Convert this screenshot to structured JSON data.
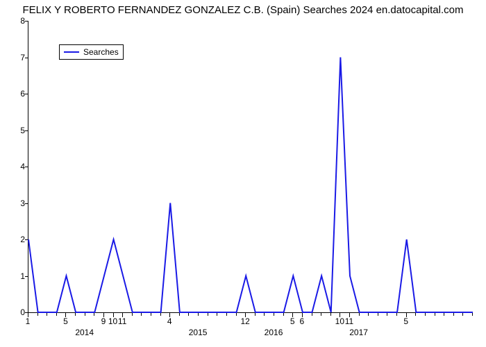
{
  "chart": {
    "type": "line",
    "title": "FELIX Y ROBERTO FERNANDEZ GONZALEZ C.B. (Spain) Searches 2024 en.datocapital.com",
    "title_fontsize": 15,
    "background_color": "#ffffff",
    "line_color": "#1a1ae6",
    "line_width": 2,
    "axis_color": "#000000",
    "label_fontsize": 12,
    "legend": {
      "label": "Searches",
      "position": "top-left"
    },
    "y": {
      "min": 0,
      "max": 8,
      "ticks": [
        0,
        1,
        2,
        3,
        4,
        5,
        6,
        7,
        8
      ]
    },
    "x": {
      "n_points": 48,
      "top_labels": [
        {
          "i": 0,
          "t": "1"
        },
        {
          "i": 4,
          "t": "5"
        },
        {
          "i": 8,
          "t": "9"
        },
        {
          "i": 9,
          "t": "10"
        },
        {
          "i": 10,
          "t": "11"
        },
        {
          "i": 15,
          "t": "4"
        },
        {
          "i": 23,
          "t": "12"
        },
        {
          "i": 28,
          "t": "5"
        },
        {
          "i": 29,
          "t": "6"
        },
        {
          "i": 33,
          "t": "10"
        },
        {
          "i": 34,
          "t": "11"
        },
        {
          "i": 40,
          "t": "5"
        }
      ],
      "bottom_labels": [
        {
          "i": 6,
          "t": "2014"
        },
        {
          "i": 18,
          "t": "2015"
        },
        {
          "i": 26,
          "t": "2016"
        },
        {
          "i": 35,
          "t": "2017"
        }
      ],
      "minor_ticks_all": true
    },
    "values": [
      2,
      0,
      0,
      0,
      1,
      0,
      0,
      0,
      1,
      2,
      1,
      0,
      0,
      0,
      0,
      3,
      0,
      0,
      0,
      0,
      0,
      0,
      0,
      1,
      0,
      0,
      0,
      0,
      1,
      0,
      0,
      1,
      0,
      7,
      1,
      0,
      0,
      0,
      0,
      0,
      2,
      0,
      0,
      0,
      0,
      0,
      0,
      0
    ]
  }
}
